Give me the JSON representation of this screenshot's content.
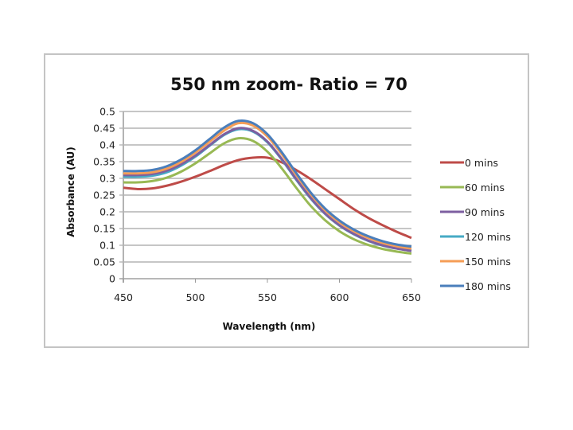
{
  "chart_data": {
    "type": "line",
    "title": "550 nm zoom- Ratio = 70",
    "xlabel": "Wavelength (nm)",
    "ylabel": "Absorbance (AU)",
    "xlim": [
      450,
      650
    ],
    "ylim": [
      0,
      0.5
    ],
    "xticks": [
      450,
      500,
      550,
      600,
      650
    ],
    "xtick_labels": [
      "450",
      "500",
      "550",
      "600",
      "650"
    ],
    "yticks": [
      0,
      0.05,
      0.1,
      0.15,
      0.2,
      0.25,
      0.3,
      0.35,
      0.4,
      0.45,
      0.5
    ],
    "ytick_labels": [
      "0",
      "0.05",
      "0.1",
      "0.15",
      "0.2",
      "0.25",
      "0.3",
      "0.35",
      "0.4",
      "0.45",
      "0.5"
    ],
    "grid": "horizontal",
    "legend_position": "right",
    "x": [
      450,
      460,
      470,
      480,
      490,
      500,
      510,
      520,
      530,
      540,
      550,
      560,
      570,
      580,
      590,
      600,
      610,
      620,
      630,
      640,
      650
    ],
    "series": [
      {
        "name": "0 mins",
        "color": "#be4b48",
        "values": [
          0.272,
          0.268,
          0.27,
          0.278,
          0.29,
          0.305,
          0.322,
          0.34,
          0.355,
          0.362,
          0.362,
          0.348,
          0.325,
          0.298,
          0.268,
          0.238,
          0.208,
          0.182,
          0.16,
          0.14,
          0.122
        ]
      },
      {
        "name": "60 mins",
        "color": "#98b954",
        "values": [
          0.288,
          0.288,
          0.292,
          0.302,
          0.32,
          0.345,
          0.375,
          0.405,
          0.42,
          0.412,
          0.38,
          0.33,
          0.272,
          0.218,
          0.175,
          0.142,
          0.118,
          0.101,
          0.089,
          0.081,
          0.075
        ]
      },
      {
        "name": "90 mins",
        "color": "#7d5fa0",
        "values": [
          0.31,
          0.31,
          0.313,
          0.323,
          0.342,
          0.368,
          0.4,
          0.432,
          0.45,
          0.442,
          0.41,
          0.358,
          0.298,
          0.242,
          0.195,
          0.16,
          0.134,
          0.114,
          0.1,
          0.09,
          0.083
        ]
      },
      {
        "name": "120 mins",
        "color": "#46aac5",
        "values": [
          0.305,
          0.305,
          0.308,
          0.318,
          0.338,
          0.365,
          0.398,
          0.43,
          0.447,
          0.44,
          0.408,
          0.356,
          0.296,
          0.24,
          0.194,
          0.159,
          0.133,
          0.113,
          0.099,
          0.09,
          0.084
        ]
      },
      {
        "name": "150 mins",
        "color": "#f59d56",
        "values": [
          0.315,
          0.315,
          0.318,
          0.329,
          0.349,
          0.377,
          0.41,
          0.443,
          0.465,
          0.458,
          0.425,
          0.372,
          0.31,
          0.253,
          0.205,
          0.169,
          0.142,
          0.122,
          0.107,
          0.097,
          0.09
        ]
      },
      {
        "name": "180 mins",
        "color": "#4a7ebb",
        "values": [
          0.322,
          0.322,
          0.325,
          0.336,
          0.356,
          0.384,
          0.418,
          0.452,
          0.472,
          0.465,
          0.432,
          0.378,
          0.316,
          0.258,
          0.21,
          0.174,
          0.147,
          0.127,
          0.112,
          0.102,
          0.096
        ]
      }
    ]
  }
}
